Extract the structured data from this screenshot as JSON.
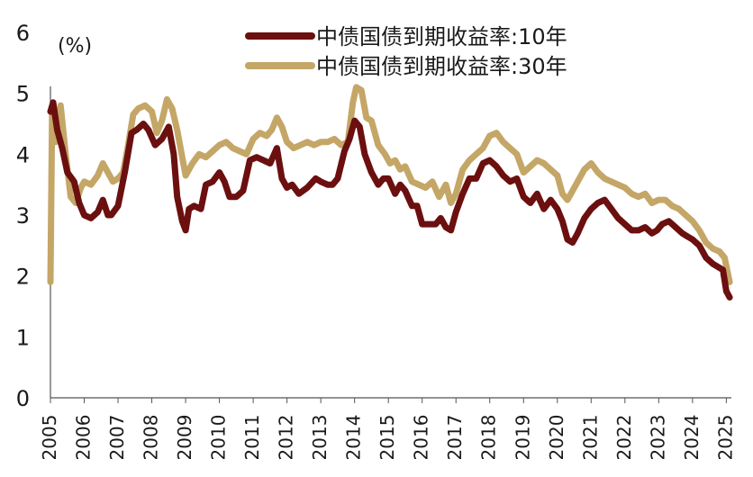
{
  "chart_data": {
    "type": "line",
    "title": "",
    "unit_label": "(%)",
    "x_ticks": [
      "2005",
      "2006",
      "2007",
      "2008",
      "2009",
      "2010",
      "2011",
      "2012",
      "2013",
      "2014",
      "2015",
      "2016",
      "2017",
      "2018",
      "2019",
      "2020",
      "2021",
      "2022",
      "2023",
      "2024",
      "2025"
    ],
    "y_ticks": [
      "0",
      "1",
      "2",
      "3",
      "4",
      "5",
      "6"
    ],
    "ylim": [
      0,
      6
    ],
    "xlim": [
      2005.0,
      2025.15
    ],
    "grid": false,
    "legend_position": "top-center",
    "series": [
      {
        "name": "中债国债到期收益率:10年",
        "color": "#6b0f0f",
        "x": [
          2005.0,
          2005.08,
          2005.2,
          2005.35,
          2005.5,
          2005.7,
          2005.85,
          2006.0,
          2006.2,
          2006.4,
          2006.55,
          2006.7,
          2006.8,
          2007.0,
          2007.2,
          2007.4,
          2007.55,
          2007.75,
          2007.9,
          2008.1,
          2008.3,
          2008.5,
          2008.65,
          2008.75,
          2008.9,
          2009.0,
          2009.1,
          2009.25,
          2009.45,
          2009.6,
          2009.8,
          2010.0,
          2010.15,
          2010.3,
          2010.5,
          2010.7,
          2010.9,
          2011.1,
          2011.3,
          2011.5,
          2011.7,
          2011.85,
          2012.0,
          2012.15,
          2012.35,
          2012.6,
          2012.85,
          2013.0,
          2013.2,
          2013.35,
          2013.5,
          2013.7,
          2013.85,
          2014.0,
          2014.15,
          2014.3,
          2014.5,
          2014.7,
          2014.85,
          2015.0,
          2015.2,
          2015.35,
          2015.5,
          2015.7,
          2015.85,
          2016.0,
          2016.2,
          2016.4,
          2016.55,
          2016.7,
          2016.85,
          2017.0,
          2017.2,
          2017.4,
          2017.6,
          2017.8,
          2018.0,
          2018.2,
          2018.4,
          2018.6,
          2018.8,
          2019.0,
          2019.2,
          2019.4,
          2019.6,
          2019.8,
          2020.0,
          2020.15,
          2020.3,
          2020.45,
          2020.6,
          2020.8,
          2021.0,
          2021.2,
          2021.4,
          2021.6,
          2021.8,
          2022.0,
          2022.2,
          2022.4,
          2022.6,
          2022.8,
          2022.95,
          2023.1,
          2023.3,
          2023.5,
          2023.7,
          2023.85,
          2024.0,
          2024.2,
          2024.4,
          2024.6,
          2024.75,
          2024.9,
          2025.0,
          2025.1
        ],
        "values": [
          4.7,
          4.85,
          4.4,
          4.1,
          3.7,
          3.55,
          3.2,
          3.0,
          2.95,
          3.05,
          3.25,
          3.0,
          3.0,
          3.15,
          3.7,
          4.35,
          4.4,
          4.5,
          4.4,
          4.15,
          4.25,
          4.45,
          4.0,
          3.3,
          2.9,
          2.75,
          3.1,
          3.15,
          3.1,
          3.5,
          3.55,
          3.7,
          3.55,
          3.3,
          3.3,
          3.4,
          3.9,
          3.95,
          3.9,
          3.85,
          4.1,
          3.6,
          3.45,
          3.5,
          3.35,
          3.45,
          3.6,
          3.55,
          3.5,
          3.5,
          3.6,
          4.05,
          4.25,
          4.55,
          4.45,
          4.0,
          3.7,
          3.5,
          3.6,
          3.6,
          3.35,
          3.5,
          3.4,
          3.15,
          3.15,
          2.85,
          2.85,
          2.85,
          2.95,
          2.8,
          2.75,
          3.05,
          3.35,
          3.6,
          3.6,
          3.85,
          3.9,
          3.8,
          3.65,
          3.55,
          3.6,
          3.3,
          3.2,
          3.35,
          3.1,
          3.25,
          3.1,
          2.9,
          2.6,
          2.55,
          2.7,
          2.95,
          3.1,
          3.2,
          3.25,
          3.1,
          2.95,
          2.85,
          2.75,
          2.75,
          2.8,
          2.7,
          2.75,
          2.85,
          2.9,
          2.8,
          2.7,
          2.65,
          2.6,
          2.5,
          2.3,
          2.2,
          2.15,
          2.1,
          1.75,
          1.65
        ],
        "width": 7
      },
      {
        "name": "中债国债到期收益率:30年",
        "color": "#c4a667",
        "x": [
          2005.0,
          2005.05,
          2005.15,
          2005.3,
          2005.45,
          2005.6,
          2005.75,
          2005.9,
          2006.0,
          2006.2,
          2006.4,
          2006.55,
          2006.7,
          2006.85,
          2007.0,
          2007.15,
          2007.3,
          2007.45,
          2007.6,
          2007.8,
          2008.0,
          2008.15,
          2008.3,
          2008.45,
          2008.6,
          2008.75,
          2008.9,
          2009.0,
          2009.2,
          2009.4,
          2009.6,
          2009.8,
          2010.0,
          2010.2,
          2010.4,
          2010.6,
          2010.8,
          2011.0,
          2011.2,
          2011.4,
          2011.55,
          2011.7,
          2011.85,
          2012.0,
          2012.2,
          2012.4,
          2012.6,
          2012.8,
          2013.0,
          2013.2,
          2013.4,
          2013.6,
          2013.8,
          2013.95,
          2014.05,
          2014.2,
          2014.35,
          2014.5,
          2014.7,
          2014.9,
          2015.05,
          2015.2,
          2015.35,
          2015.5,
          2015.7,
          2015.9,
          2016.1,
          2016.3,
          2016.5,
          2016.7,
          2016.85,
          2017.0,
          2017.2,
          2017.4,
          2017.6,
          2017.8,
          2018.0,
          2018.2,
          2018.4,
          2018.6,
          2018.8,
          2019.0,
          2019.2,
          2019.4,
          2019.6,
          2019.8,
          2020.0,
          2020.15,
          2020.3,
          2020.45,
          2020.6,
          2020.8,
          2021.0,
          2021.2,
          2021.4,
          2021.6,
          2021.8,
          2022.0,
          2022.2,
          2022.4,
          2022.6,
          2022.8,
          2023.0,
          2023.2,
          2023.4,
          2023.6,
          2023.8,
          2024.0,
          2024.2,
          2024.4,
          2024.6,
          2024.8,
          2024.95,
          2025.1
        ],
        "values": [
          1.9,
          4.75,
          4.2,
          4.8,
          4.0,
          3.3,
          3.2,
          3.45,
          3.55,
          3.5,
          3.65,
          3.85,
          3.7,
          3.55,
          3.6,
          3.7,
          4.15,
          4.65,
          4.75,
          4.8,
          4.7,
          4.35,
          4.55,
          4.9,
          4.75,
          4.4,
          3.95,
          3.65,
          3.85,
          4.0,
          3.95,
          4.05,
          4.15,
          4.2,
          4.1,
          4.05,
          4.0,
          4.25,
          4.35,
          4.3,
          4.4,
          4.6,
          4.45,
          4.2,
          4.1,
          4.15,
          4.2,
          4.15,
          4.2,
          4.2,
          4.25,
          4.15,
          4.2,
          4.85,
          5.1,
          5.05,
          4.6,
          4.55,
          4.15,
          4.0,
          3.85,
          3.9,
          3.75,
          3.8,
          3.55,
          3.5,
          3.45,
          3.55,
          3.3,
          3.5,
          3.2,
          3.35,
          3.75,
          3.9,
          4.0,
          4.1,
          4.3,
          4.35,
          4.2,
          4.1,
          4.0,
          3.7,
          3.8,
          3.9,
          3.85,
          3.75,
          3.65,
          3.35,
          3.25,
          3.4,
          3.55,
          3.75,
          3.85,
          3.7,
          3.6,
          3.55,
          3.5,
          3.45,
          3.35,
          3.3,
          3.35,
          3.2,
          3.25,
          3.25,
          3.15,
          3.1,
          3.0,
          2.9,
          2.75,
          2.55,
          2.45,
          2.4,
          2.3,
          1.9
        ],
        "width": 7
      }
    ]
  }
}
